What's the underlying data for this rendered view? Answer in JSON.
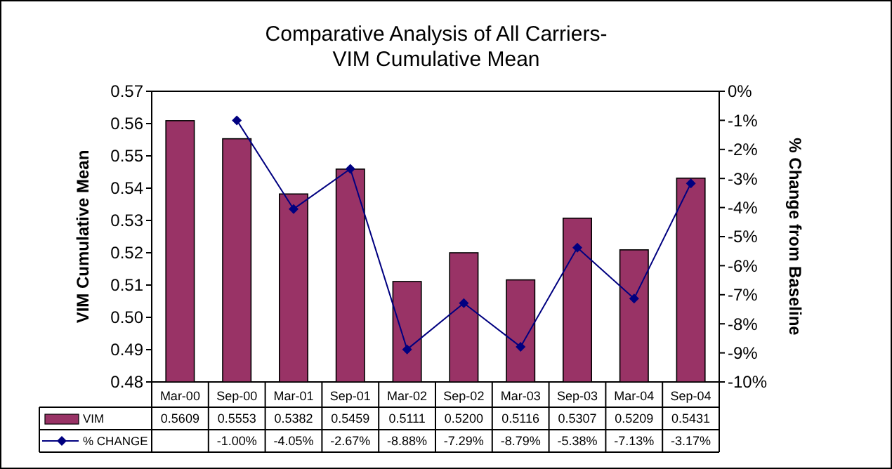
{
  "chart_data": {
    "type": "bar",
    "title": "Comparative Analysis of All Carriers-\nVIM Cumulative Mean",
    "ylabel": "VIM Cumulative Mean",
    "y2label": "% Change from Baseline",
    "categories": [
      "Mar-00",
      "Sep-00",
      "Mar-01",
      "Sep-01",
      "Mar-02",
      "Sep-02",
      "Mar-03",
      "Sep-03",
      "Mar-04",
      "Sep-04"
    ],
    "series": [
      {
        "name": "VIM",
        "color": "#993366",
        "values": [
          0.5609,
          0.5553,
          0.5382,
          0.5459,
          0.5111,
          0.52,
          0.5116,
          0.5307,
          0.5209,
          0.5431
        ],
        "value_labels": [
          "0.5609",
          "0.5553",
          "0.5382",
          "0.5459",
          "0.5111",
          "0.5200",
          "0.5116",
          "0.5307",
          "0.5209",
          "0.5431"
        ]
      },
      {
        "name": "% CHANGE",
        "type": "line",
        "axis": "y2",
        "color": "#000080",
        "marker": "diamond",
        "values": [
          null,
          -1.0,
          -4.05,
          -2.67,
          -8.88,
          -7.29,
          -8.79,
          -5.38,
          -7.13,
          -3.17
        ],
        "value_labels": [
          null,
          "-1.00%",
          "-4.05%",
          "-2.67%",
          "-8.88%",
          "-7.29%",
          "-8.79%",
          "-5.38%",
          "-7.13%",
          "-3.17%"
        ]
      }
    ],
    "ylim": [
      0.48,
      0.57
    ],
    "yticks": [
      {
        "value": 0.48,
        "label": "0.48"
      },
      {
        "value": 0.49,
        "label": "0.49"
      },
      {
        "value": 0.5,
        "label": "0.50"
      },
      {
        "value": 0.51,
        "label": "0.51"
      },
      {
        "value": 0.52,
        "label": "0.52"
      },
      {
        "value": 0.53,
        "label": "0.53"
      },
      {
        "value": 0.54,
        "label": "0.54"
      },
      {
        "value": 0.55,
        "label": "0.55"
      },
      {
        "value": 0.56,
        "label": "0.56"
      },
      {
        "value": 0.57,
        "label": "0.57"
      }
    ],
    "y2lim": [
      -10,
      0
    ],
    "y2ticks": [
      {
        "value": 0,
        "label": "0%"
      },
      {
        "value": -1,
        "label": "-1%"
      },
      {
        "value": -2,
        "label": "-2%"
      },
      {
        "value": -3,
        "label": "-3%"
      },
      {
        "value": -4,
        "label": "-4%"
      },
      {
        "value": -5,
        "label": "-5%"
      },
      {
        "value": -6,
        "label": "-6%"
      },
      {
        "value": -7,
        "label": "-7%"
      },
      {
        "value": -8,
        "label": "-8%"
      },
      {
        "value": -9,
        "label": "-9%"
      },
      {
        "value": -10,
        "label": "-10%"
      }
    ],
    "legend": "bottom",
    "grid": false
  }
}
